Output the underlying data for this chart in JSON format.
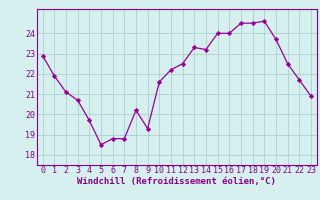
{
  "x": [
    0,
    1,
    2,
    3,
    4,
    5,
    6,
    7,
    8,
    9,
    10,
    11,
    12,
    13,
    14,
    15,
    16,
    17,
    18,
    19,
    20,
    21,
    22,
    23
  ],
  "y": [
    22.9,
    21.9,
    21.1,
    20.7,
    19.7,
    18.5,
    18.8,
    18.8,
    20.2,
    19.3,
    21.6,
    22.2,
    22.5,
    23.3,
    23.2,
    24.0,
    24.0,
    24.5,
    24.5,
    24.6,
    23.7,
    22.5,
    21.7,
    20.9
  ],
  "line_color": "#990099",
  "marker": "D",
  "marker_size": 2.2,
  "bg_color": "#d6efef",
  "grid_color": "#aacfcf",
  "xlabel": "Windchill (Refroidissement éolien,°C)",
  "xlabel_color": "#880088",
  "tick_color": "#880088",
  "ylim": [
    17.5,
    25.2
  ],
  "xlim": [
    -0.5,
    23.5
  ],
  "yticks": [
    18,
    19,
    20,
    21,
    22,
    23,
    24
  ],
  "xticks": [
    0,
    1,
    2,
    3,
    4,
    5,
    6,
    7,
    8,
    9,
    10,
    11,
    12,
    13,
    14,
    15,
    16,
    17,
    18,
    19,
    20,
    21,
    22,
    23
  ],
  "font_size_label": 6.5,
  "font_size_tick": 6.0
}
